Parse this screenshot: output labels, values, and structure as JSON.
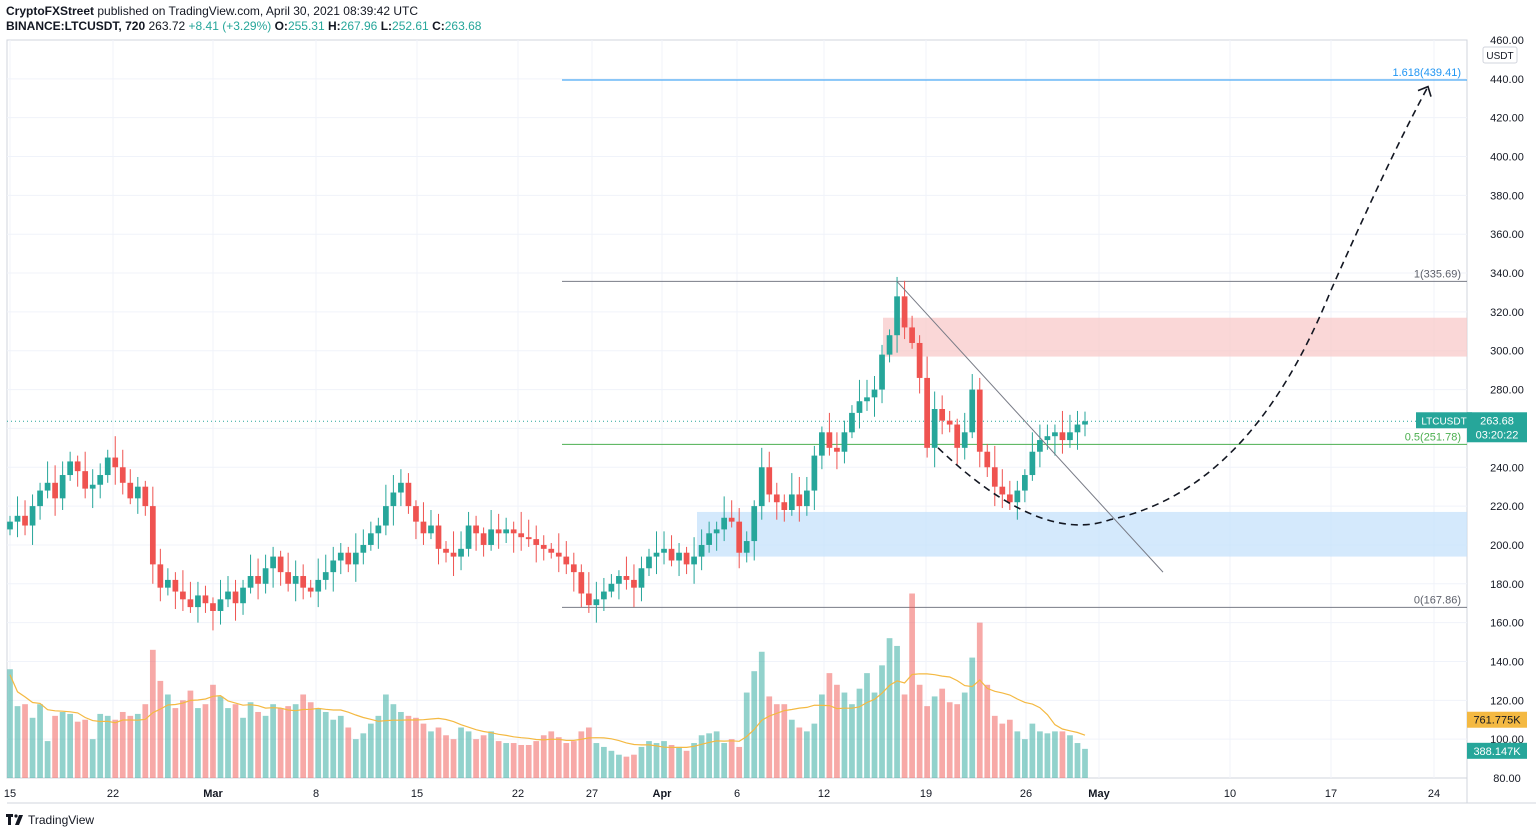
{
  "header": {
    "publisher": "CryptoFXStreet",
    "published_text": "published on TradingView.com, April 30, 2021 08:39:42 UTC",
    "symbol": "BINANCE:LTCUSDT, 720",
    "last_price": "263.72",
    "change": "+8.41 (+3.29%)",
    "o_label": "O:",
    "o_value": "255.31",
    "h_label": "H:",
    "h_value": "267.96",
    "l_label": "L:",
    "l_value": "252.61",
    "c_label": "C:",
    "c_value": "263.68"
  },
  "footer": {
    "brand": "TradingView"
  },
  "colors": {
    "up": "#26a69a",
    "down": "#ef5350",
    "fib_upper": "#2196f3",
    "fib_mid": "#4caf50",
    "fib_line": "#787b86",
    "ma": "#f4b942",
    "supply_zone": "#f8c9c9",
    "demand_zone": "#c6e2fb"
  },
  "chart_data": {
    "type": "candlestick",
    "currency_label": "USDT",
    "ylim": [
      80,
      460
    ],
    "y_ticks": [
      "460.00",
      "440.00",
      "420.00",
      "400.00",
      "380.00",
      "360.00",
      "340.00",
      "320.00",
      "300.00",
      "280.00",
      "260.00",
      "240.00",
      "220.00",
      "200.00",
      "180.00",
      "160.00",
      "140.00",
      "120.00",
      "100.00",
      "80.00"
    ],
    "x_ticks": [
      "15",
      "22",
      "Mar",
      "8",
      "15",
      "22",
      "27",
      "Apr",
      "6",
      "12",
      "19",
      "26",
      "May",
      "10",
      "17",
      "24"
    ],
    "fib_levels": [
      {
        "label": "1.618(439.41)",
        "value": 439.41
      },
      {
        "label": "1(335.69)",
        "value": 335.69
      },
      {
        "label": "0.5(251.78)",
        "value": 251.78
      },
      {
        "label": "0(167.86)",
        "value": 167.86
      }
    ],
    "zones": [
      {
        "name": "supply",
        "low": 297,
        "high": 317
      },
      {
        "name": "demand",
        "low": 194,
        "high": 217
      }
    ],
    "price_label": {
      "symbol": "LTCUSDT",
      "value": "263.68",
      "countdown": "03:20:22"
    },
    "volume_labels": {
      "ma": "761.775K",
      "volume": "388.147K"
    },
    "trend": "down",
    "price_path": [
      212,
      215,
      210,
      220,
      228,
      232,
      224,
      236,
      243,
      238,
      229,
      231,
      236,
      245,
      240,
      232,
      224,
      230,
      220,
      190,
      178,
      182,
      176,
      172,
      168,
      174,
      170,
      166,
      172,
      176,
      170,
      178,
      184,
      180,
      188,
      194,
      186,
      180,
      184,
      178,
      176,
      182,
      186,
      192,
      196,
      190,
      196,
      200,
      206,
      210,
      220,
      227,
      232,
      220,
      212,
      206,
      210,
      198,
      196,
      194,
      198,
      210,
      206,
      200,
      208,
      206,
      208,
      206,
      204,
      203,
      200,
      198,
      196,
      194,
      190,
      186,
      175,
      169,
      172,
      176,
      180,
      184,
      182,
      178,
      188,
      194,
      196,
      198,
      192,
      196,
      190,
      194,
      200,
      206,
      208,
      214,
      212,
      196,
      202,
      220,
      240,
      226,
      222,
      218,
      226,
      220,
      228,
      246,
      258,
      250,
      248,
      258,
      268,
      274,
      276,
      280,
      298,
      308,
      328,
      312,
      304,
      286,
      250,
      270,
      264,
      262,
      250,
      258,
      280,
      248,
      240,
      230,
      226,
      222,
      228,
      236,
      248,
      254,
      256,
      258,
      254,
      258,
      262,
      263.68
    ],
    "volume_path": [
      136,
      117,
      118,
      111,
      118,
      99,
      112,
      114,
      113,
      109,
      110,
      100,
      113,
      112,
      110,
      114,
      112,
      113,
      118,
      146,
      130,
      123,
      116,
      120,
      125,
      116,
      118,
      128,
      122,
      116,
      118,
      111,
      119,
      114,
      112,
      118,
      116,
      117,
      118,
      123,
      119,
      116,
      114,
      110,
      112,
      106,
      100,
      103,
      108,
      112,
      123,
      118,
      114,
      112,
      111,
      108,
      104,
      106,
      102,
      100,
      106,
      104,
      100,
      102,
      104,
      99,
      98,
      98,
      97,
      97,
      99,
      102,
      104,
      101,
      98,
      99,
      104,
      106,
      98,
      96,
      94,
      92,
      91,
      92,
      96,
      99,
      98,
      99,
      97,
      96,
      94,
      98,
      102,
      103,
      104,
      98,
      100,
      96,
      124,
      135,
      145,
      122,
      118,
      118,
      110,
      106,
      104,
      108,
      123,
      134,
      128,
      124,
      118,
      126,
      134,
      124,
      138,
      152,
      148,
      123,
      175,
      128,
      117,
      122,
      126,
      119,
      118,
      124,
      142,
      160,
      128,
      112,
      108,
      110,
      104,
      100,
      108,
      104,
      103,
      104,
      104,
      102,
      98,
      95
    ]
  }
}
